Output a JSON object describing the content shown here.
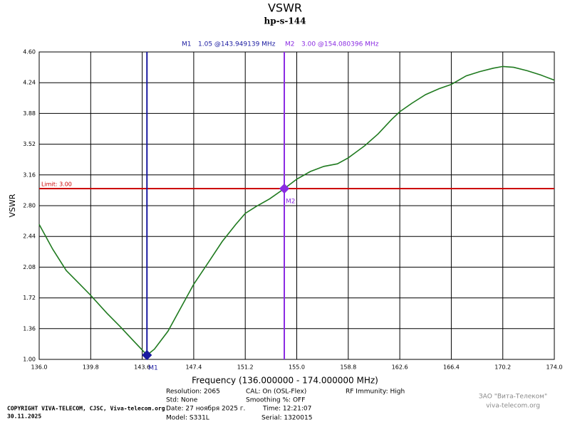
{
  "chart_data": {
    "type": "line",
    "title": "VSWR",
    "subtitle": "hp-s-144",
    "xlabel": "Frequency (136.000000 - 174.000000 MHz)",
    "ylabel": "VSWR",
    "color": "#1f7a1f",
    "grid": true,
    "xlim": [
      136,
      174
    ],
    "ylim": [
      1,
      4.6
    ],
    "xticks": [
      {
        "value": 136,
        "label": "136.0"
      },
      139.8,
      143.6,
      147.4,
      151.2,
      {
        "value": 155,
        "label": "155.0"
      },
      158.8,
      162.6,
      166.4,
      170.2,
      {
        "value": 174,
        "label": "174.0"
      }
    ],
    "yticks": [
      {
        "value": 1,
        "label": "1.00"
      },
      1.36,
      1.72,
      2.08,
      2.44,
      {
        "value": 2.8,
        "label": "2.80"
      },
      3.16,
      3.52,
      3.88,
      4.24,
      {
        "value": 4.6,
        "label": "4.60"
      }
    ],
    "x": [
      136,
      137,
      138,
      139,
      139.8,
      141,
      142,
      143,
      143.6,
      143.95,
      144.5,
      145.5,
      146.5,
      147.4,
      148.5,
      149.5,
      150.5,
      151.2,
      152,
      153,
      154.08,
      155,
      156,
      157,
      158,
      158.8,
      160,
      161,
      162,
      162.6,
      163.5,
      164.5,
      165.5,
      166.4,
      167.5,
      168.5,
      169.5,
      170.2,
      171,
      172,
      173,
      174
    ],
    "values": [
      2.58,
      2.29,
      2.04,
      1.88,
      1.75,
      1.54,
      1.38,
      1.21,
      1.11,
      1.05,
      1.12,
      1.33,
      1.62,
      1.88,
      2.14,
      2.38,
      2.58,
      2.71,
      2.79,
      2.88,
      3.0,
      3.11,
      3.2,
      3.26,
      3.29,
      3.36,
      3.5,
      3.64,
      3.81,
      3.9,
      4.0,
      4.1,
      4.17,
      4.22,
      4.32,
      4.37,
      4.41,
      4.43,
      4.42,
      4.38,
      4.33,
      4.27
    ],
    "limit": {
      "label": "Limit: 3.00",
      "value": 3,
      "color": "#cc0000"
    },
    "markers": [
      {
        "name": "M1",
        "readout": "1.05 @143.949139 MHz",
        "x": 143.949139,
        "y": 1.05,
        "color": "#1a1aa0"
      },
      {
        "name": "M2",
        "readout": "3.00 @154.080396 MHz",
        "x": 154.080396,
        "y": 3.0,
        "color": "#8a2be2"
      }
    ],
    "info": {
      "resolution": "Resolution: 2065",
      "std": "Std: None",
      "date": "Date: 27 ноября 2025 г.",
      "model": "Model: S331L",
      "cal": "CAL: On (OSL-Flex)",
      "smoothing": "Smoothing %:  OFF",
      "time": "Time: 12:21:07",
      "serial": "Serial: 1320015",
      "rf": "RF Immunity: High"
    },
    "copyright": "COPYRIGHT VIVA-TELECOM, CJSC, Viva-telecom.org",
    "copyright_date": "30.11.2025",
    "watermark": [
      "ЗАО \"Вита-Телеком\"",
      "viva-telecom.org"
    ]
  }
}
